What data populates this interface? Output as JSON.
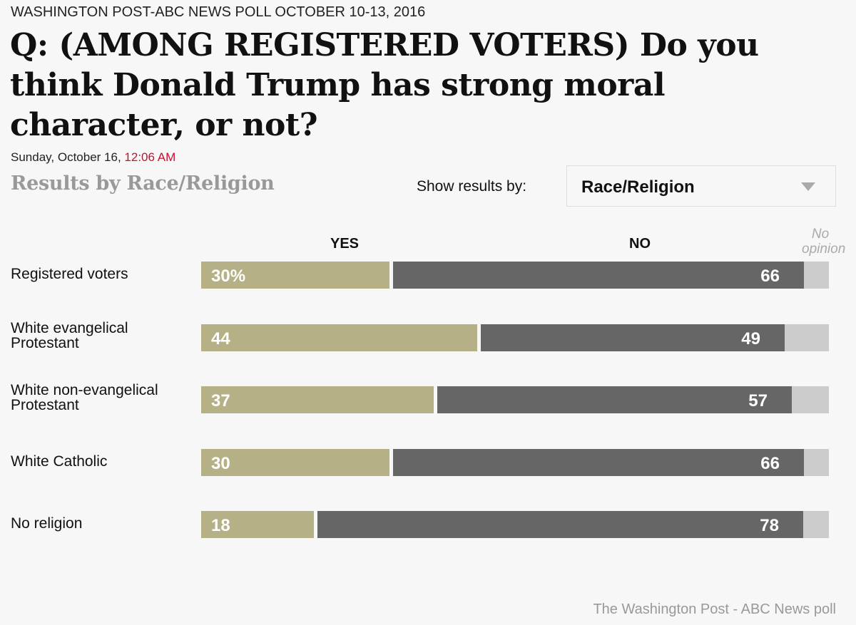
{
  "kicker": "WASHINGTON POST-ABC NEWS POLL OCTOBER 10-13, 2016",
  "title": "Q: (AMONG REGISTERED VOTERS) Do you think Donald Trump has strong moral character, or not?",
  "dateline": {
    "date": "Sunday, October 16,",
    "time": "12:06 AM"
  },
  "subhead": "Results by Race/Religion",
  "controls": {
    "show_label": "Show results by:",
    "selected": "Race/Religion"
  },
  "colors": {
    "yes": "#b5b085",
    "no": "#666666",
    "no_opinion": "#cccccc",
    "time": "#c8102e"
  },
  "chart_data": {
    "type": "bar",
    "orientation": "horizontal-stacked",
    "title": "Q: (AMONG REGISTERED VOTERS) Do you think Donald Trump has strong moral character, or not?",
    "column_headers": {
      "yes": "YES",
      "no": "NO",
      "no_opinion": "No opinion"
    },
    "categories": [
      "Registered voters",
      "White evangelical Protestant",
      "White non-evangelical Protestant",
      "White Catholic",
      "No religion"
    ],
    "series": [
      {
        "name": "Yes",
        "values": [
          30,
          44,
          37,
          30,
          18
        ]
      },
      {
        "name": "No",
        "values": [
          66,
          49,
          57,
          66,
          78
        ]
      },
      {
        "name": "No opinion",
        "values": [
          4,
          7,
          6,
          4,
          4
        ]
      }
    ],
    "labels": {
      "yes": [
        "30%",
        "44",
        "37",
        "30",
        "18"
      ],
      "no": [
        "66",
        "49",
        "57",
        "66",
        "78"
      ]
    },
    "xlim": [
      0,
      100
    ]
  },
  "source": "The Washington Post - ABC News poll"
}
